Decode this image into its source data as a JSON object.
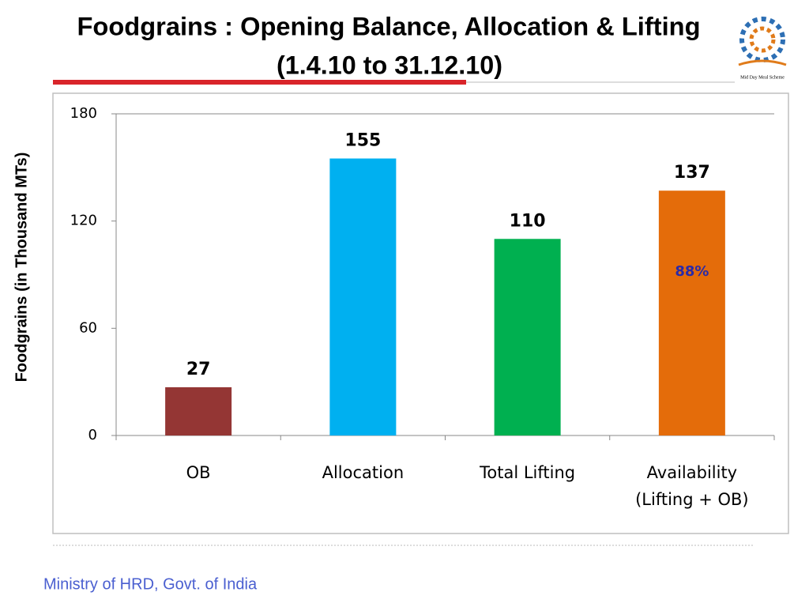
{
  "chart_data": {
    "type": "bar",
    "title": "Foodgrains : Opening Balance, Allocation & Lifting",
    "subtitle": "(1.4.10 to 31.12.10)",
    "y_label": "Foodgrains (in Thousand MTs)",
    "categories": [
      "OB",
      "Allocation",
      "Total Lifting",
      "Availability (Lifting + OB)"
    ],
    "values": [
      27,
      155,
      110,
      137
    ],
    "colors": [
      "#943634",
      "#00b0f0",
      "#00b050",
      "#e46c0a"
    ],
    "ylim": [
      0,
      180
    ],
    "yticks": [
      0,
      60,
      120,
      180
    ],
    "grid": false,
    "annotation": {
      "text": "88%",
      "color": "#2a2aa8"
    }
  },
  "logo_caption": "Mid Day Meal Scheme",
  "footer": "Ministry of HRD, Govt. of India"
}
